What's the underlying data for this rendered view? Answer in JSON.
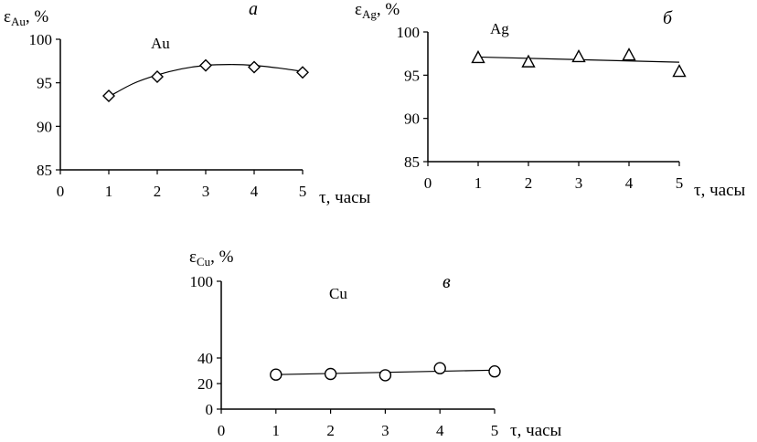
{
  "chart_data": [
    {
      "type": "scatter",
      "panel_label": "а",
      "series_label": "Au",
      "ylabel": {
        "symbol": "ε",
        "subscript": "Au",
        "unit": ", %"
      },
      "xlabel": "τ, часы",
      "x_ticks": [
        "0",
        "1",
        "2",
        "3",
        "4",
        "5"
      ],
      "y_ticks": [
        "85",
        "90",
        "95",
        "100"
      ],
      "xlim": [
        0,
        5
      ],
      "ylim": [
        85,
        100
      ],
      "marker": "diamond",
      "trendline": "polynomial",
      "series": [
        {
          "x": [
            1,
            2,
            3,
            4,
            5
          ],
          "y": [
            93.5,
            95.7,
            97.0,
            96.8,
            96.2
          ]
        }
      ],
      "trend": {
        "x": [
          1,
          1.5,
          2,
          2.5,
          3,
          3.5,
          4,
          4.5,
          5
        ],
        "y": [
          93.4,
          94.9,
          95.9,
          96.6,
          97.0,
          97.1,
          97.0,
          96.7,
          96.3
        ]
      }
    },
    {
      "type": "scatter",
      "panel_label": "б",
      "series_label": "Ag",
      "ylabel": {
        "symbol": "ε",
        "subscript": "Ag",
        "unit": ", %"
      },
      "xlabel": "τ, часы",
      "x_ticks": [
        "0",
        "1",
        "2",
        "3",
        "4",
        "5"
      ],
      "y_ticks": [
        "85",
        "90",
        "95",
        "100"
      ],
      "xlim": [
        0,
        5
      ],
      "ylim": [
        85,
        100
      ],
      "marker": "triangle",
      "trendline": "linear",
      "series": [
        {
          "x": [
            1,
            2,
            3,
            4,
            5
          ],
          "y": [
            97.0,
            96.5,
            97.1,
            97.3,
            95.4
          ]
        }
      ],
      "trend": {
        "x": [
          1,
          5
        ],
        "y": [
          97.1,
          96.5
        ]
      }
    },
    {
      "type": "scatter",
      "panel_label": "в",
      "series_label": "Cu",
      "ylabel": {
        "symbol": "ε",
        "subscript": "Cu",
        "unit": ", %"
      },
      "xlabel": "τ, часы",
      "x_ticks": [
        "0",
        "1",
        "2",
        "3",
        "4",
        "5"
      ],
      "y_ticks": [
        "0",
        "20",
        "40",
        "100"
      ],
      "xlim": [
        0,
        5
      ],
      "ylim": [
        0,
        100
      ],
      "marker": "circle",
      "trendline": "linear",
      "series": [
        {
          "x": [
            1,
            2,
            3,
            4,
            5
          ],
          "y": [
            27,
            27.5,
            26.5,
            32,
            29.5
          ]
        }
      ],
      "trend": {
        "x": [
          1,
          5
        ],
        "y": [
          27,
          30.5
        ]
      }
    }
  ]
}
